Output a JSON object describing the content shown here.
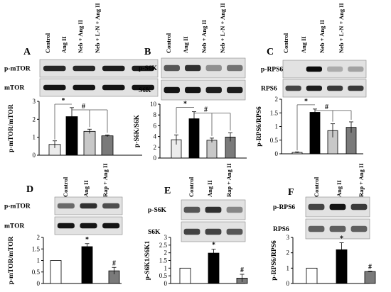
{
  "chart_data": [
    {
      "panel": "A",
      "type": "bar",
      "lanes": [
        "Control",
        "Ang II",
        "Neb + Ang II",
        "Neb + L-N + Ang II"
      ],
      "blots": [
        "p-mTOR",
        "mTOR"
      ],
      "ylabel": "p-mTOR/mTOR",
      "ylim": [
        0,
        3
      ],
      "ytick_labels": [
        "0",
        "1",
        "2",
        "3"
      ],
      "values": [
        0.6,
        2.15,
        1.33,
        1.08
      ],
      "errors": [
        0.2,
        0.5,
        0.12,
        0.05
      ],
      "fills": [
        "#ececec",
        "#000000",
        "#c8c8c8",
        "#7a7a7a"
      ],
      "annotations": [
        "*",
        "#"
      ]
    },
    {
      "panel": "B",
      "type": "bar",
      "lanes": [
        "Control",
        "Ang II",
        "Neb + Ang II",
        "Neb + L-N + Ang II"
      ],
      "blots": [
        "p-S6K",
        "S6K"
      ],
      "ylabel": "p-S6K/S6K",
      "ylim": [
        0,
        10
      ],
      "ytick_labels": [
        "0",
        "2",
        "4",
        "6",
        "8",
        "10"
      ],
      "values": [
        3.4,
        7.3,
        3.3,
        3.9
      ],
      "errors": [
        0.9,
        1.3,
        0.4,
        0.8
      ],
      "fills": [
        "#ececec",
        "#000000",
        "#c8c8c8",
        "#7a7a7a"
      ],
      "annotations": [
        "*",
        "#"
      ]
    },
    {
      "panel": "C",
      "type": "bar",
      "lanes": [
        "Control",
        "Ang II",
        "Neb + Ang II",
        "Neb + L-N + Ang II"
      ],
      "blots": [
        "p-RPS6",
        "RPS6"
      ],
      "ylabel": "p-RPS6/RPS6",
      "ylim": [
        0,
        2
      ],
      "ytick_labels": [
        "0",
        "0.5",
        "1",
        "1.5",
        "2"
      ],
      "values": [
        0.05,
        1.52,
        0.85,
        0.97
      ],
      "errors": [
        0.02,
        0.12,
        0.25,
        0.2
      ],
      "fills": [
        "#ececec",
        "#000000",
        "#c8c8c8",
        "#7a7a7a"
      ],
      "annotations": [
        "*",
        "#"
      ]
    },
    {
      "panel": "D",
      "type": "bar",
      "lanes": [
        "Control",
        "Ang II",
        "Rap + Ang II"
      ],
      "blots": [
        "p-mTOR",
        "mTOR"
      ],
      "ylabel": "p-mTOR/mTOR",
      "ylim": [
        0,
        2
      ],
      "ytick_labels": [
        "0",
        "0.5",
        "1",
        "1.5",
        "2"
      ],
      "values": [
        1.0,
        1.6,
        0.55
      ],
      "errors": [
        0,
        0.13,
        0.15
      ],
      "fills": [
        "#ffffff",
        "#000000",
        "#7a7a7a"
      ],
      "annotations": [
        "*",
        "#"
      ]
    },
    {
      "panel": "E",
      "type": "bar",
      "lanes": [
        "Control",
        "Ang II",
        "Rap + Ang II"
      ],
      "blots": [
        "p-S6K",
        "S6K"
      ],
      "ylabel": "p-S6K1/S6K1",
      "ylim": [
        0,
        3
      ],
      "ytick_labels": [
        "0",
        "0.5",
        "1",
        "1.5",
        "2",
        "2.5",
        "3"
      ],
      "values": [
        1.0,
        1.98,
        0.35
      ],
      "errors": [
        0,
        0.25,
        0.25
      ],
      "fills": [
        "#ffffff",
        "#000000",
        "#7a7a7a"
      ],
      "annotations": [
        "*",
        "#"
      ]
    },
    {
      "panel": "F",
      "type": "bar",
      "lanes": [
        "Control",
        "Ang II",
        "Rap + Ang II"
      ],
      "blots": [
        "p-RPS6",
        "RPS6"
      ],
      "ylabel": "p-RPS6/RPS6",
      "ylim": [
        0,
        3
      ],
      "ytick_labels": [
        "0",
        "1",
        "2",
        "3"
      ],
      "values": [
        1.0,
        2.2,
        0.78
      ],
      "errors": [
        0,
        0.45,
        0.03
      ],
      "fills": [
        "#ffffff",
        "#000000",
        "#7a7a7a"
      ],
      "annotations": [
        "*",
        "#"
      ]
    }
  ]
}
